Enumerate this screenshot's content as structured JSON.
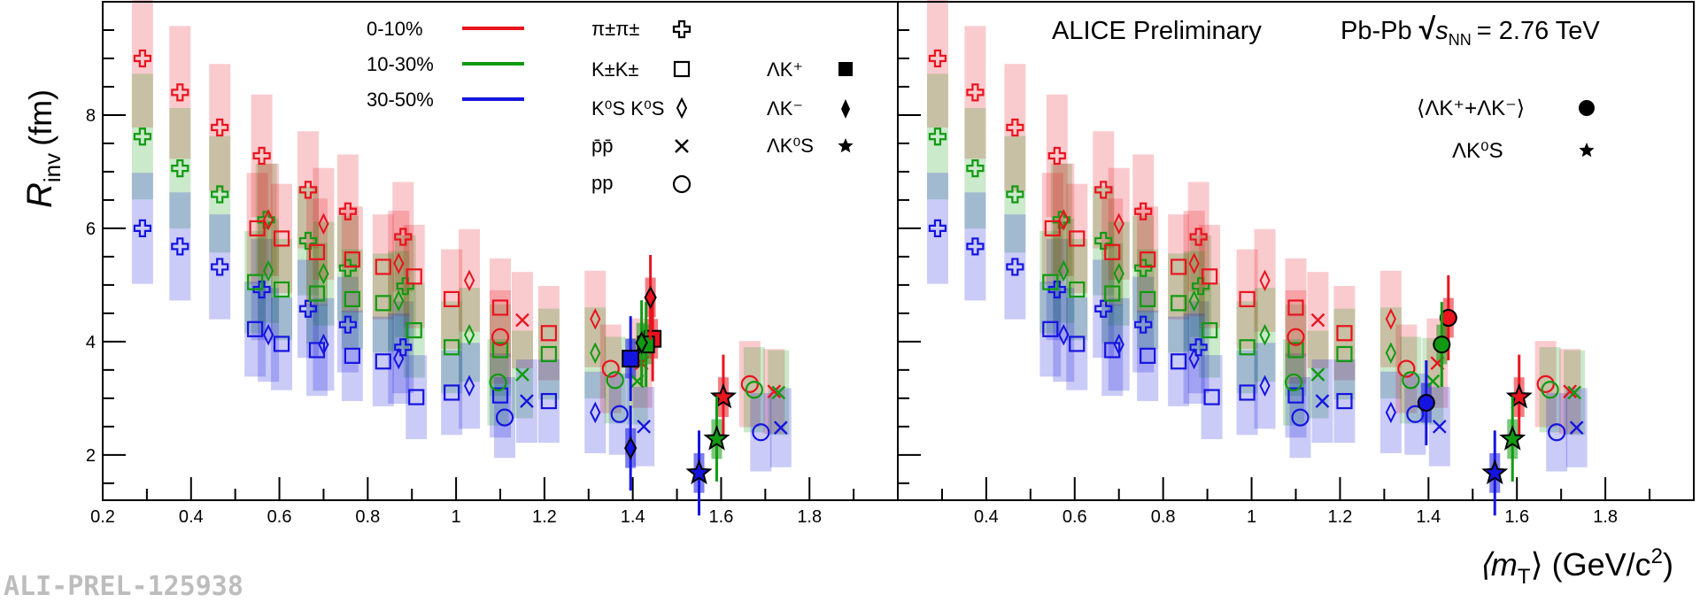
{
  "watermark": "ALI-PREL-125938",
  "axes": {
    "ylabel_main": "R",
    "ylabel_sub": "inv",
    "ylabel_unit": "(fm)",
    "xlabel_pre": "⟨m",
    "xlabel_sub": "T",
    "xlabel_post": "⟩ (GeV/c",
    "xlabel_sup": "2",
    "xlabel_end": ")"
  },
  "header": {
    "experiment": "ALICE Preliminary",
    "system": "Pb-Pb",
    "sqrt": "√",
    "s": "s",
    "snn_sub": "NN",
    "energy": "= 2.76 TeV"
  },
  "legend_centrality": [
    {
      "label": "0-10%",
      "color": "#e8141e"
    },
    {
      "label": "10-30%",
      "color": "#119a11"
    },
    {
      "label": "30-50%",
      "color": "#1414e0"
    }
  ],
  "legend_species": [
    {
      "main": "π±π±",
      "symbol": "cross-icon"
    },
    {
      "main": "K±K±",
      "symbol": "square-open-icon"
    },
    {
      "main": "K⁰S K⁰S",
      "symbol": "diamond-open-icon"
    },
    {
      "main": "p̄p̄",
      "symbol": "x-icon"
    },
    {
      "main": "pp",
      "symbol": "circle-open-icon"
    }
  ],
  "legend_lambda_left": [
    {
      "main": "ΛK⁺",
      "symbol": "square-filled-icon"
    },
    {
      "main": "ΛK⁻",
      "symbol": "diamond-filled-icon"
    },
    {
      "main": "ΛK⁰S",
      "symbol": "star-filled-icon"
    }
  ],
  "legend_lambda_right": [
    {
      "main": "⟨ΛK⁺+ΛK⁻⟩",
      "symbol": "circle-filled-icon"
    },
    {
      "main": "ΛK⁰S",
      "symbol": "star-filled-icon"
    }
  ],
  "chart_data": {
    "type": "scatter",
    "xlabel": "⟨m_T⟩ (GeV/c²)",
    "ylabel": "R_inv (fm)",
    "xlim_left": [
      0.2,
      2.0
    ],
    "xlim_right": [
      0.2,
      2.0
    ],
    "ylim": [
      1.2,
      10.0
    ],
    "x_ticks": [
      0.2,
      0.4,
      0.6,
      0.8,
      1.0,
      1.2,
      1.4,
      1.6,
      1.8
    ],
    "x_ticks_right": [
      0.4,
      0.6,
      0.8,
      1.0,
      1.2,
      1.4,
      1.6,
      1.8
    ],
    "y_ticks": [
      2,
      4,
      6,
      8
    ],
    "grid": false,
    "colors": {
      "0-10%": "#e8141e",
      "10-30%": "#119a11",
      "30-50%": "#1414e0"
    },
    "series": [
      {
        "name": "π±π± 0-10%",
        "marker": "cross",
        "color": "#e8141e",
        "panels": "both",
        "points": [
          [
            0.29,
            9.0
          ],
          [
            0.375,
            8.4
          ],
          [
            0.465,
            7.78
          ],
          [
            0.56,
            7.28
          ],
          [
            0.665,
            6.68
          ],
          [
            0.755,
            6.3
          ],
          [
            0.88,
            5.85
          ]
        ]
      },
      {
        "name": "π±π± 10-30%",
        "marker": "cross",
        "color": "#119a11",
        "panels": "both",
        "points": [
          [
            0.29,
            7.62
          ],
          [
            0.375,
            7.06
          ],
          [
            0.465,
            6.6
          ],
          [
            0.57,
            6.15
          ],
          [
            0.665,
            5.78
          ],
          [
            0.755,
            5.3
          ],
          [
            0.885,
            4.98
          ]
        ]
      },
      {
        "name": "π±π± 30-50%",
        "marker": "cross",
        "color": "#1414e0",
        "panels": "both",
        "points": [
          [
            0.29,
            6.0
          ],
          [
            0.375,
            5.68
          ],
          [
            0.465,
            5.32
          ],
          [
            0.56,
            4.92
          ],
          [
            0.665,
            4.58
          ],
          [
            0.755,
            4.3
          ],
          [
            0.88,
            3.9
          ]
        ]
      },
      {
        "name": "K±K± 0-10%",
        "marker": "square-open",
        "color": "#e8141e",
        "panels": "both",
        "points": [
          [
            0.55,
            6.0
          ],
          [
            0.605,
            5.82
          ],
          [
            0.685,
            5.58
          ],
          [
            0.765,
            5.45
          ],
          [
            0.835,
            5.32
          ],
          [
            0.905,
            5.15
          ],
          [
            0.99,
            4.75
          ],
          [
            1.1,
            4.6
          ],
          [
            1.21,
            4.15
          ]
        ]
      },
      {
        "name": "K±K± 10-30%",
        "marker": "square-open",
        "color": "#119a11",
        "panels": "both",
        "points": [
          [
            0.545,
            5.05
          ],
          [
            0.605,
            4.92
          ],
          [
            0.685,
            4.85
          ],
          [
            0.765,
            4.75
          ],
          [
            0.835,
            4.68
          ],
          [
            0.905,
            4.2
          ],
          [
            0.99,
            3.9
          ],
          [
            1.1,
            3.85
          ],
          [
            1.21,
            3.78
          ]
        ]
      },
      {
        "name": "K±K± 30-50%",
        "marker": "square-open",
        "color": "#1414e0",
        "panels": "both",
        "points": [
          [
            0.545,
            4.22
          ],
          [
            0.605,
            3.96
          ],
          [
            0.685,
            3.85
          ],
          [
            0.765,
            3.75
          ],
          [
            0.835,
            3.65
          ],
          [
            0.91,
            3.02
          ],
          [
            0.99,
            3.1
          ],
          [
            1.1,
            3.05
          ],
          [
            1.21,
            2.95
          ]
        ]
      },
      {
        "name": "K⁰S K⁰S 0-10%",
        "marker": "diamond-open",
        "color": "#e8141e",
        "panels": "both",
        "points": [
          [
            0.575,
            6.15
          ],
          [
            0.7,
            6.08
          ],
          [
            0.87,
            5.38
          ],
          [
            1.03,
            5.08
          ],
          [
            1.315,
            4.4
          ]
        ]
      },
      {
        "name": "K⁰S K⁰S 10-30%",
        "marker": "diamond-open",
        "color": "#119a11",
        "panels": "both",
        "points": [
          [
            0.575,
            5.25
          ],
          [
            0.7,
            5.2
          ],
          [
            0.87,
            4.72
          ],
          [
            1.03,
            4.12
          ],
          [
            1.315,
            3.8
          ]
        ]
      },
      {
        "name": "K⁰S K⁰S 30-50%",
        "marker": "diamond-open",
        "color": "#1414e0",
        "panels": "both",
        "points": [
          [
            0.575,
            4.12
          ],
          [
            0.7,
            3.95
          ],
          [
            0.87,
            3.7
          ],
          [
            1.03,
            3.22
          ],
          [
            1.315,
            2.75
          ]
        ]
      },
      {
        "name": "p̄p̄ 0-10%",
        "marker": "x",
        "color": "#e8141e",
        "panels": "both",
        "points": [
          [
            1.15,
            4.38
          ],
          [
            1.42,
            3.62
          ],
          [
            1.72,
            3.12
          ]
        ]
      },
      {
        "name": "p̄p̄ 10-30%",
        "marker": "x",
        "color": "#119a11",
        "panels": "both",
        "points": [
          [
            1.15,
            3.42
          ],
          [
            1.41,
            3.3
          ],
          [
            1.73,
            3.1
          ]
        ]
      },
      {
        "name": "p̄p̄ 30-50%",
        "marker": "x",
        "color": "#1414e0",
        "panels": "both",
        "points": [
          [
            1.16,
            2.95
          ],
          [
            1.425,
            2.5
          ],
          [
            1.735,
            2.48
          ]
        ]
      },
      {
        "name": "pp 0-10%",
        "marker": "circle-open",
        "color": "#e8141e",
        "panels": "both",
        "points": [
          [
            1.1,
            4.08
          ],
          [
            1.35,
            3.52
          ],
          [
            1.665,
            3.25
          ]
        ]
      },
      {
        "name": "pp 10-30%",
        "marker": "circle-open",
        "color": "#119a11",
        "panels": "both",
        "points": [
          [
            1.095,
            3.28
          ],
          [
            1.36,
            3.32
          ],
          [
            1.675,
            3.15
          ]
        ]
      },
      {
        "name": "pp 30-50%",
        "marker": "circle-open",
        "color": "#1414e0",
        "panels": "both",
        "points": [
          [
            1.11,
            2.66
          ],
          [
            1.37,
            2.72
          ],
          [
            1.69,
            2.4
          ]
        ]
      },
      {
        "name": "ΛK⁺ 0-10%",
        "marker": "square-filled",
        "color": "#e8141e",
        "panels": "left",
        "points": [
          [
            1.445,
            4.05
          ]
        ]
      },
      {
        "name": "ΛK⁺ 10-30%",
        "marker": "square-filled",
        "color": "#119a11",
        "panels": "left",
        "points": [
          [
            1.43,
            3.95
          ]
        ]
      },
      {
        "name": "ΛK⁺ 30-50%",
        "marker": "square-filled",
        "color": "#1414e0",
        "panels": "left",
        "points": [
          [
            1.395,
            3.7
          ]
        ]
      },
      {
        "name": "ΛK⁻ 0-10%",
        "marker": "diamond-filled",
        "color": "#e8141e",
        "panels": "left",
        "points": [
          [
            1.44,
            4.78
          ]
        ]
      },
      {
        "name": "ΛK⁻ 10-30%",
        "marker": "diamond-filled",
        "color": "#119a11",
        "panels": "left",
        "points": [
          [
            1.42,
            3.98
          ]
        ]
      },
      {
        "name": "ΛK⁻ 30-50%",
        "marker": "diamond-filled",
        "color": "#1414e0",
        "panels": "left",
        "points": [
          [
            1.395,
            2.12
          ]
        ]
      },
      {
        "name": "ΛK⁰S 0-10%",
        "marker": "star-filled",
        "color": "#e8141e",
        "panels": "both",
        "points": [
          [
            1.605,
            3.02
          ]
        ]
      },
      {
        "name": "ΛK⁰S 10-30%",
        "marker": "star-filled",
        "color": "#119a11",
        "panels": "both",
        "points": [
          [
            1.59,
            2.28
          ]
        ]
      },
      {
        "name": "ΛK⁰S 30-50%",
        "marker": "star-filled",
        "color": "#1414e0",
        "panels": "both",
        "points": [
          [
            1.55,
            1.68
          ]
        ]
      },
      {
        "name": "⟨ΛK⁺+ΛK⁻⟩ 0-10%",
        "marker": "circle-filled",
        "color": "#e8141e",
        "panels": "right",
        "points": [
          [
            1.445,
            4.42
          ]
        ]
      },
      {
        "name": "⟨ΛK⁺+ΛK⁻⟩ 10-30%",
        "marker": "circle-filled",
        "color": "#119a11",
        "panels": "right",
        "points": [
          [
            1.43,
            3.95
          ]
        ]
      },
      {
        "name": "⟨ΛK⁺+ΛK⁻⟩ 30-50%",
        "marker": "circle-filled",
        "color": "#1414e0",
        "panels": "right",
        "points": [
          [
            1.395,
            2.92
          ]
        ]
      }
    ]
  }
}
